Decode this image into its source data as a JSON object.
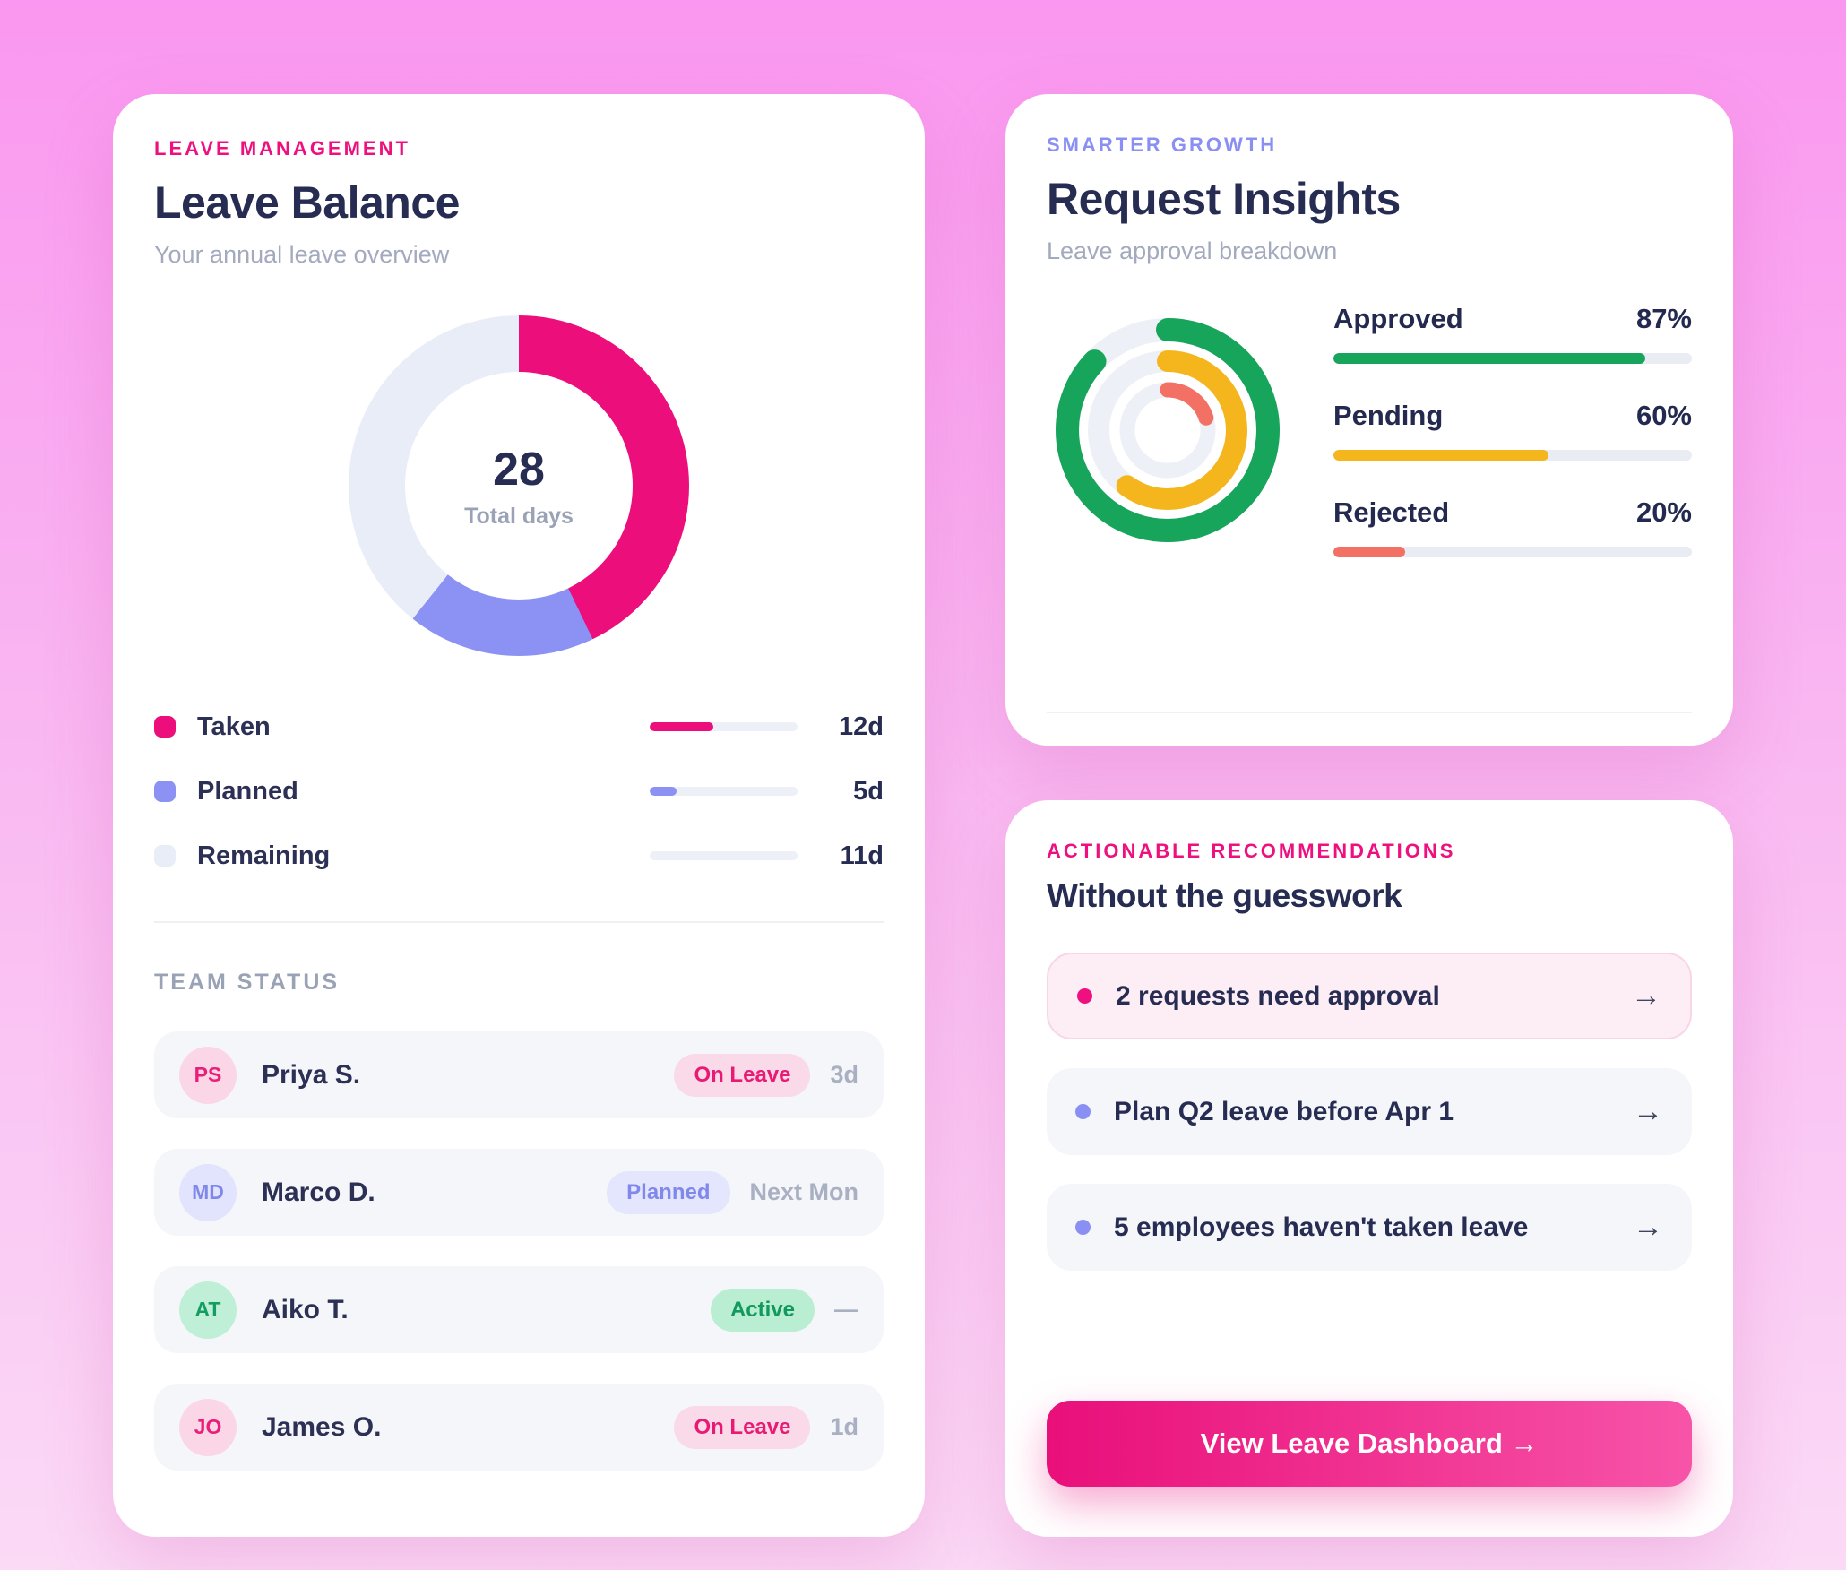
{
  "colors": {
    "pink": "#ee107e",
    "periwinkle": "#8a90f3",
    "green": "#17a45b",
    "yellow": "#f5b61d",
    "salmon": "#f37064",
    "navy": "#272c52"
  },
  "icons": {
    "arrow_right": "→"
  },
  "chart_data": [
    {
      "type": "pie",
      "variant": "donut",
      "title": "Leave Balance",
      "labels": [
        "Taken",
        "Planned",
        "Remaining"
      ],
      "values": [
        12,
        5,
        11
      ],
      "unit": "days",
      "colors": [
        "#ec0e7b",
        "#8b92f4",
        "#e9edf8"
      ],
      "center_value": "28",
      "center_label": "Total days",
      "legend_position": "below"
    },
    {
      "type": "pie",
      "variant": "concentric-rings",
      "title": "Request Insights",
      "labels": [
        "Approved",
        "Pending",
        "Rejected"
      ],
      "values": [
        87,
        60,
        20
      ],
      "unit": "%",
      "colors": [
        "#17a45b",
        "#f5b61d",
        "#f37064"
      ],
      "legend_position": "right"
    }
  ],
  "leave_card": {
    "eyebrow": "LEAVE MANAGEMENT",
    "title": "Leave Balance",
    "subtitle": "Your annual leave overview",
    "legend": [
      {
        "label": "Taken",
        "value": "12d",
        "color": "#ec0e7b",
        "fill_pct": 43
      },
      {
        "label": "Planned",
        "value": "5d",
        "color": "#8b92f4",
        "fill_pct": 18
      },
      {
        "label": "Remaining",
        "value": "11d",
        "color": "#e9edf8",
        "fill_pct": 0
      }
    ],
    "team": {
      "header": "TEAM STATUS",
      "rows": [
        {
          "initials": "PS",
          "name": "Priya S.",
          "badge": "On Leave",
          "style": "pink",
          "meta": "3d"
        },
        {
          "initials": "MD",
          "name": "Marco D.",
          "badge": "Planned",
          "style": "purple",
          "meta": "Next Mon"
        },
        {
          "initials": "AT",
          "name": "Aiko T.",
          "badge": "Active",
          "style": "green",
          "meta": "—"
        },
        {
          "initials": "JO",
          "name": "James O.",
          "badge": "On Leave",
          "style": "pink",
          "meta": "1d"
        }
      ]
    }
  },
  "insights_card": {
    "eyebrow": "SMARTER GROWTH",
    "title": "Request Insights",
    "subtitle": "Leave approval breakdown",
    "stats": [
      {
        "label": "Approved",
        "value": "87%",
        "pct": 87,
        "color": "#17a45b"
      },
      {
        "label": "Pending",
        "value": "60%",
        "pct": 60,
        "color": "#f5b61d"
      },
      {
        "label": "Rejected",
        "value": "20%",
        "pct": 20,
        "color": "#f37064"
      }
    ]
  },
  "recommendations_card": {
    "eyebrow": "ACTIONABLE RECOMMENDATIONS",
    "title": "Without the guesswork",
    "items": [
      {
        "text": "2 requests need approval",
        "style": "pink"
      },
      {
        "text": "Plan Q2 leave before Apr 1",
        "style": "default"
      },
      {
        "text": "5 employees haven't taken leave",
        "style": "default"
      }
    ],
    "cta_label": "View Leave Dashboard →"
  }
}
